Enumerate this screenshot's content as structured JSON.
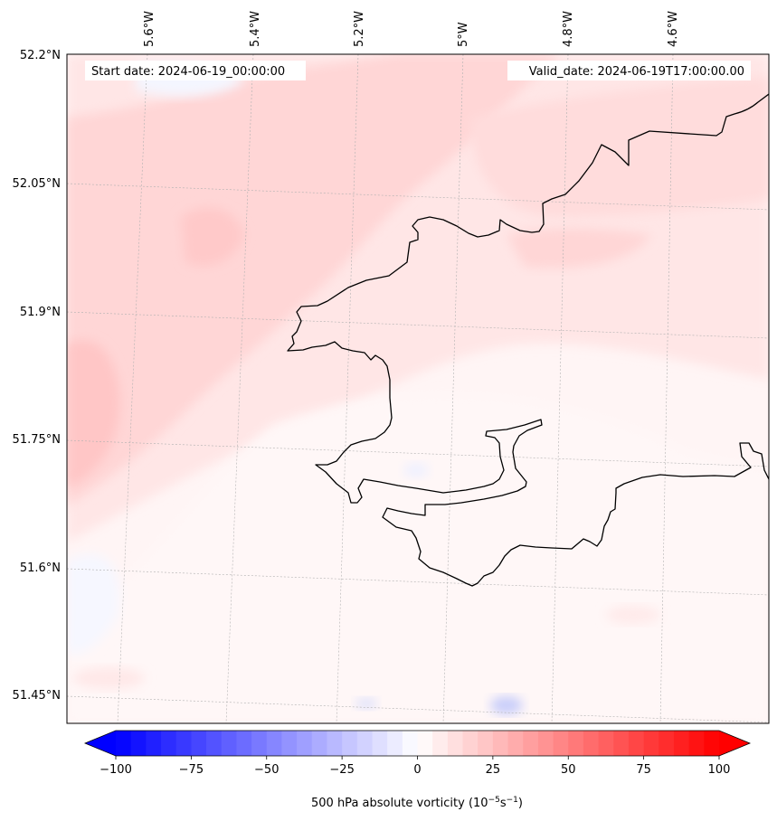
{
  "map": {
    "start_label": "Start date: 2024-06-19_00:00:00",
    "valid_label": "Valid_date: 2024-06-19T17:00:00.00",
    "lon_labels": [
      "5.6°W",
      "5.4°W",
      "5.2°W",
      "5°W",
      "4.8°W",
      "4.6°W"
    ],
    "lat_labels": [
      "52.2°N",
      "52.05°N",
      "51.9°N",
      "51.75°N",
      "51.6°N",
      "51.45°N"
    ],
    "field": "500 hPa absolute vorticity",
    "coastline_color": "#000000",
    "gridlines": true
  },
  "colorbar": {
    "tick_labels": [
      "−100",
      "−75",
      "−50",
      "−25",
      "0",
      "25",
      "50",
      "75",
      "100"
    ],
    "label": "500 hPa absolute vorticity (10",
    "label_exp1": "−5",
    "label_mid": "s",
    "label_exp2": "−1",
    "label_end": ")",
    "range": [
      -100,
      100
    ],
    "colormap": "bwr",
    "low_color": "#0000ff",
    "mid_color": "#ffffff",
    "high_color": "#ff0000"
  }
}
